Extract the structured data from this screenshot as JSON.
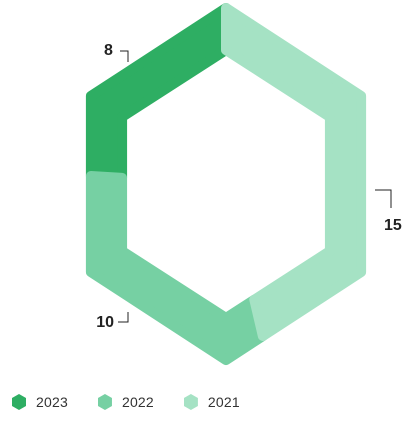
{
  "chart_data": {
    "type": "pie",
    "variant": "hexagonal-donut",
    "title": "",
    "series": [
      {
        "name": "2023",
        "value": 8,
        "color": "#2eae63"
      },
      {
        "name": "2022",
        "value": 10,
        "color": "#76d0a3"
      },
      {
        "name": "2021",
        "value": 15,
        "color": "#a5e2c4"
      }
    ],
    "start": "top, clockwise",
    "legend": "bottom-left"
  }
}
